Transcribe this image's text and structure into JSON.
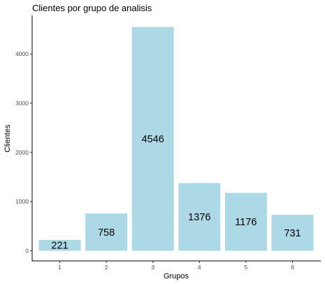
{
  "chart_data": {
    "type": "bar",
    "title": "Clientes por grupo de analisis",
    "xlabel": "Grupos",
    "ylabel": "Clientes",
    "categories": [
      "1",
      "2",
      "3",
      "4",
      "5",
      "6"
    ],
    "values": [
      221,
      758,
      4546,
      1376,
      1176,
      731
    ],
    "data_labels": [
      "221",
      "758",
      "4546",
      "1376",
      "1176",
      "731"
    ],
    "yticks": [
      0,
      1000,
      2000,
      3000,
      4000
    ],
    "ytick_labels": [
      "0",
      "1000",
      "2000",
      "3000",
      "4000"
    ],
    "ylim": [
      0,
      4773
    ],
    "grid": false,
    "legend": "none",
    "bar_color": "#add8e6",
    "axis_color": "#000000"
  }
}
